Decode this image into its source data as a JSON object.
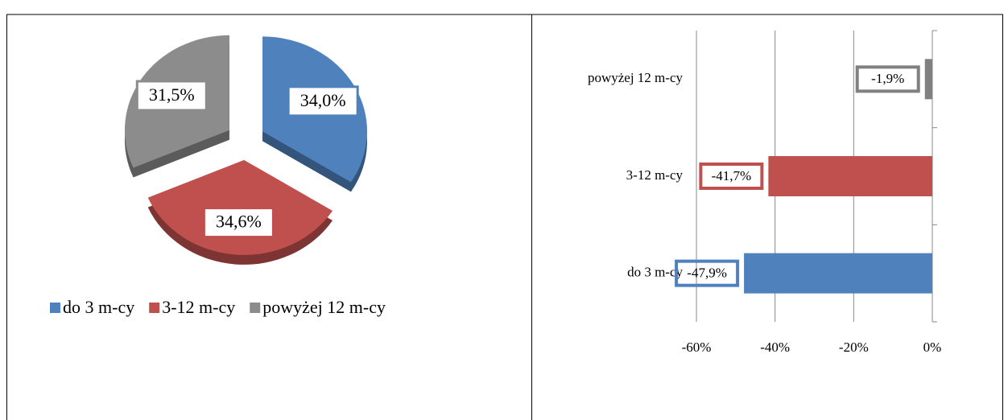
{
  "chart_data": [
    {
      "type": "pie",
      "categories": [
        "do 3 m-cy",
        "3-12 m-cy",
        "powyżej 12 m-cy"
      ],
      "values": [
        34.0,
        34.6,
        31.5
      ],
      "value_labels": [
        "34,0%",
        "34,6%",
        "31,5%"
      ],
      "colors": [
        "#4f81bd",
        "#c0504d",
        "#8c8c8c"
      ],
      "legend": "bottom"
    },
    {
      "type": "bar",
      "orientation": "horizontal",
      "categories": [
        "do 3 m-cy",
        "3-12 m-cy",
        "powyżej 12 m-cy"
      ],
      "values": [
        -47.9,
        -41.7,
        -1.9
      ],
      "value_labels": [
        "-47,9%",
        "-41,7%",
        "-1,9%"
      ],
      "colors": [
        "#4f81bd",
        "#c0504d",
        "#808080"
      ],
      "xlim": [
        -60,
        0
      ],
      "xticks": [
        {
          "value": -60,
          "label": "-60%"
        },
        {
          "value": -40,
          "label": "-40%"
        },
        {
          "value": -20,
          "label": "-20%"
        },
        {
          "value": 0,
          "label": "0%"
        }
      ],
      "grid": true
    }
  ]
}
